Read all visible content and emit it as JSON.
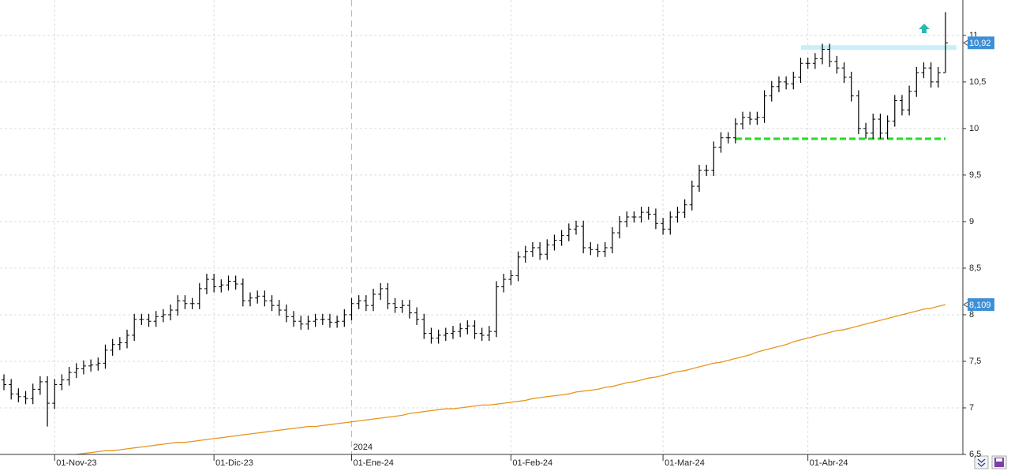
{
  "chart_data": {
    "type": "ohlc",
    "categories": [
      null,
      null,
      null,
      null,
      null,
      null,
      null,
      "01-Nov-23",
      null,
      null,
      null,
      null,
      null,
      null,
      null,
      null,
      null,
      null,
      null,
      null,
      null,
      null,
      null,
      null,
      null,
      null,
      null,
      null,
      null,
      "01-Dic-23",
      null,
      null,
      null,
      null,
      null,
      null,
      null,
      null,
      null,
      null,
      null,
      null,
      null,
      null,
      null,
      null,
      null,
      null,
      "01-Ene-24",
      null,
      null,
      null,
      null,
      null,
      null,
      null,
      null,
      null,
      null,
      null,
      null,
      null,
      null,
      null,
      null,
      null,
      null,
      null,
      null,
      null,
      "01-Feb-24",
      null,
      null,
      null,
      null,
      null,
      null,
      null,
      null,
      null,
      null,
      null,
      null,
      null,
      null,
      null,
      null,
      null,
      null,
      null,
      null,
      "01-Mar-24",
      null,
      null,
      null,
      null,
      null,
      null,
      null,
      null,
      null,
      null,
      null,
      null,
      null,
      null,
      null,
      null,
      null,
      null,
      null,
      "01-Abr-24",
      null,
      null,
      null,
      null,
      null,
      null,
      null,
      null,
      null,
      null,
      null,
      null,
      null,
      null,
      null,
      null,
      null,
      null,
      null
    ],
    "open": [
      7.3,
      7.25,
      7.15,
      7.12,
      7.1,
      7.2,
      7.28,
      7.05,
      7.25,
      7.3,
      7.38,
      7.42,
      7.45,
      7.46,
      7.48,
      7.62,
      7.68,
      7.7,
      7.78,
      7.95,
      7.95,
      7.93,
      7.98,
      8.0,
      8.05,
      8.15,
      8.12,
      8.12,
      8.28,
      8.38,
      8.3,
      8.32,
      8.36,
      8.33,
      8.15,
      8.18,
      8.2,
      8.15,
      8.1,
      8.05,
      7.98,
      7.93,
      7.9,
      7.93,
      7.95,
      7.95,
      7.92,
      7.93,
      8.0,
      8.12,
      8.15,
      8.1,
      8.22,
      8.28,
      8.12,
      8.08,
      8.1,
      8.02,
      7.95,
      7.8,
      7.75,
      7.78,
      7.8,
      7.82,
      7.85,
      7.88,
      7.8,
      7.78,
      7.82,
      8.3,
      8.38,
      8.42,
      8.62,
      8.68,
      8.72,
      8.65,
      8.75,
      8.8,
      8.85,
      8.92,
      8.95,
      8.72,
      8.7,
      8.68,
      8.72,
      8.88,
      9.0,
      9.05,
      9.05,
      9.1,
      9.08,
      8.98,
      8.92,
      9.05,
      9.1,
      9.18,
      9.38,
      9.55,
      9.55,
      9.8,
      9.9,
      9.9,
      10.05,
      10.12,
      10.1,
      10.12,
      10.35,
      10.45,
      10.5,
      10.48,
      10.55,
      10.7,
      10.7,
      10.75,
      10.85,
      10.72,
      10.65,
      10.55,
      10.35,
      10.0,
      9.95,
      10.1,
      9.95,
      10.08,
      10.3,
      10.2,
      10.4,
      10.6,
      10.65,
      10.5,
      10.6
    ],
    "high": [
      7.36,
      7.31,
      7.21,
      7.18,
      7.26,
      7.34,
      7.34,
      7.31,
      7.36,
      7.44,
      7.48,
      7.51,
      7.52,
      7.54,
      7.68,
      7.74,
      7.76,
      7.84,
      8.01,
      8.01,
      8.01,
      8.04,
      8.06,
      8.11,
      8.21,
      8.21,
      8.18,
      8.34,
      8.44,
      8.44,
      8.38,
      8.42,
      8.42,
      8.39,
      8.24,
      8.26,
      8.26,
      8.21,
      8.16,
      8.11,
      8.04,
      7.99,
      7.99,
      8.01,
      8.01,
      8.01,
      7.99,
      8.06,
      8.18,
      8.21,
      8.21,
      8.28,
      8.34,
      8.34,
      8.18,
      8.16,
      8.16,
      8.08,
      8.01,
      7.86,
      7.84,
      7.86,
      7.88,
      7.91,
      7.94,
      7.94,
      7.86,
      7.88,
      8.36,
      8.44,
      8.48,
      8.68,
      8.74,
      8.78,
      8.78,
      8.81,
      8.86,
      8.91,
      8.98,
      9.01,
      9.01,
      8.78,
      8.76,
      8.78,
      8.94,
      9.06,
      9.11,
      9.11,
      9.16,
      9.16,
      9.14,
      9.04,
      9.11,
      9.16,
      9.24,
      9.44,
      9.61,
      9.61,
      9.86,
      9.96,
      9.96,
      10.11,
      10.18,
      10.18,
      10.18,
      10.41,
      10.51,
      10.56,
      10.56,
      10.61,
      10.76,
      10.76,
      10.81,
      10.91,
      10.91,
      10.78,
      10.71,
      10.61,
      10.41,
      10.06,
      10.16,
      10.16,
      10.14,
      10.36,
      10.36,
      10.46,
      10.66,
      10.71,
      10.71,
      10.66,
      11.25
    ],
    "low": [
      7.19,
      7.09,
      7.06,
      7.04,
      7.04,
      7.14,
      6.8,
      6.99,
      7.19,
      7.24,
      7.32,
      7.36,
      7.39,
      7.4,
      7.42,
      7.56,
      7.62,
      7.64,
      7.72,
      7.89,
      7.87,
      7.87,
      7.92,
      7.94,
      7.99,
      8.06,
      8.06,
      8.06,
      8.22,
      8.24,
      8.24,
      8.26,
      8.27,
      8.09,
      8.09,
      8.12,
      8.09,
      8.04,
      7.99,
      7.92,
      7.87,
      7.84,
      7.84,
      7.87,
      7.89,
      7.86,
      7.86,
      7.87,
      7.94,
      8.06,
      8.04,
      8.04,
      8.16,
      8.06,
      8.02,
      8.02,
      7.96,
      7.89,
      7.74,
      7.69,
      7.69,
      7.72,
      7.74,
      7.76,
      7.79,
      7.74,
      7.72,
      7.72,
      7.76,
      8.24,
      8.32,
      8.36,
      8.56,
      8.62,
      8.59,
      8.59,
      8.69,
      8.74,
      8.79,
      8.86,
      8.66,
      8.64,
      8.62,
      8.62,
      8.66,
      8.82,
      8.94,
      8.99,
      8.99,
      9.02,
      8.92,
      8.86,
      8.86,
      8.99,
      9.04,
      9.12,
      9.32,
      9.49,
      9.49,
      9.74,
      9.84,
      9.84,
      9.99,
      10.04,
      10.04,
      10.06,
      10.29,
      10.39,
      10.42,
      10.42,
      10.49,
      10.64,
      10.64,
      10.69,
      10.66,
      10.59,
      10.49,
      10.29,
      9.94,
      9.89,
      9.89,
      9.89,
      9.89,
      10.02,
      10.14,
      10.14,
      10.34,
      10.54,
      10.44,
      10.44,
      10.6
    ],
    "close": [
      7.25,
      7.15,
      7.12,
      7.1,
      7.2,
      7.28,
      7.05,
      7.25,
      7.3,
      7.38,
      7.42,
      7.45,
      7.46,
      7.48,
      7.62,
      7.68,
      7.7,
      7.78,
      7.95,
      7.95,
      7.93,
      7.98,
      8.0,
      8.05,
      8.15,
      8.12,
      8.12,
      8.28,
      8.38,
      8.3,
      8.32,
      8.36,
      8.33,
      8.15,
      8.18,
      8.2,
      8.15,
      8.1,
      8.05,
      7.98,
      7.93,
      7.9,
      7.93,
      7.95,
      7.95,
      7.92,
      7.93,
      8.0,
      8.12,
      8.15,
      8.1,
      8.22,
      8.28,
      8.12,
      8.08,
      8.1,
      8.02,
      7.95,
      7.8,
      7.75,
      7.78,
      7.8,
      7.82,
      7.85,
      7.88,
      7.8,
      7.78,
      7.82,
      8.3,
      8.38,
      8.42,
      8.62,
      8.68,
      8.72,
      8.65,
      8.75,
      8.8,
      8.85,
      8.92,
      8.95,
      8.72,
      8.7,
      8.68,
      8.72,
      8.88,
      9.0,
      9.05,
      9.05,
      9.1,
      9.08,
      8.98,
      8.92,
      9.05,
      9.1,
      9.18,
      9.38,
      9.55,
      9.55,
      9.8,
      9.9,
      9.9,
      10.05,
      10.12,
      10.1,
      10.12,
      10.35,
      10.45,
      10.5,
      10.48,
      10.55,
      10.7,
      10.7,
      10.75,
      10.85,
      10.72,
      10.65,
      10.55,
      10.35,
      10.0,
      9.95,
      10.1,
      9.95,
      10.08,
      10.3,
      10.2,
      10.4,
      10.6,
      10.65,
      10.5,
      10.6,
      10.92
    ],
    "bar_color": "#000000",
    "moving_average": {
      "color": "#e8961e",
      "values": [
        null,
        null,
        null,
        null,
        null,
        null,
        null,
        null,
        null,
        null,
        6.5,
        6.51,
        6.52,
        6.53,
        6.54,
        6.54,
        6.55,
        6.56,
        6.57,
        6.58,
        6.59,
        6.6,
        6.61,
        6.62,
        6.63,
        6.63,
        6.64,
        6.65,
        6.66,
        6.67,
        6.68,
        6.69,
        6.7,
        6.71,
        6.72,
        6.73,
        6.74,
        6.75,
        6.76,
        6.77,
        6.78,
        6.79,
        6.8,
        6.8,
        6.81,
        6.82,
        6.83,
        6.84,
        6.85,
        6.86,
        6.87,
        6.88,
        6.89,
        6.9,
        6.91,
        6.92,
        6.94,
        6.95,
        6.96,
        6.97,
        6.98,
        6.99,
        6.99,
        7.0,
        7.01,
        7.02,
        7.03,
        7.03,
        7.04,
        7.05,
        7.06,
        7.07,
        7.08,
        7.1,
        7.11,
        7.12,
        7.13,
        7.14,
        7.15,
        7.17,
        7.18,
        7.19,
        7.2,
        7.22,
        7.23,
        7.25,
        7.27,
        7.28,
        7.3,
        7.32,
        7.33,
        7.35,
        7.37,
        7.39,
        7.4,
        7.42,
        7.44,
        7.46,
        7.48,
        7.49,
        7.51,
        7.53,
        7.55,
        7.57,
        7.6,
        7.62,
        7.64,
        7.66,
        7.68,
        7.71,
        7.73,
        7.75,
        7.77,
        7.79,
        7.81,
        7.83,
        7.84,
        7.86,
        7.88,
        7.9,
        7.92,
        7.94,
        7.96,
        7.98,
        8.0,
        8.02,
        8.04,
        8.06,
        8.07,
        8.09,
        8.109
      ]
    },
    "levels": [
      {
        "value": 10.87,
        "color": "#c8eff8",
        "style": "solid"
      },
      {
        "value": 9.89,
        "color": "#22dd22",
        "style": "dashed"
      }
    ],
    "price_tags": [
      {
        "value": 10.92,
        "label": "10,92",
        "color": "#3d8fd6"
      },
      {
        "value": 8.109,
        "label": "8,109",
        "color": "#3d8fd6"
      }
    ],
    "year_marker": "2024",
    "ylim": [
      6.5,
      11.38
    ],
    "yticks": [
      {
        "value": 6.5,
        "label": "6,5"
      },
      7,
      {
        "value": 7.5,
        "label": "7,5"
      },
      8,
      {
        "value": 8.5,
        "label": "8,5"
      },
      9,
      {
        "value": 9.5,
        "label": "9,5"
      },
      10,
      {
        "value": 10.5,
        "label": "10,5"
      },
      11
    ],
    "grid": true
  }
}
